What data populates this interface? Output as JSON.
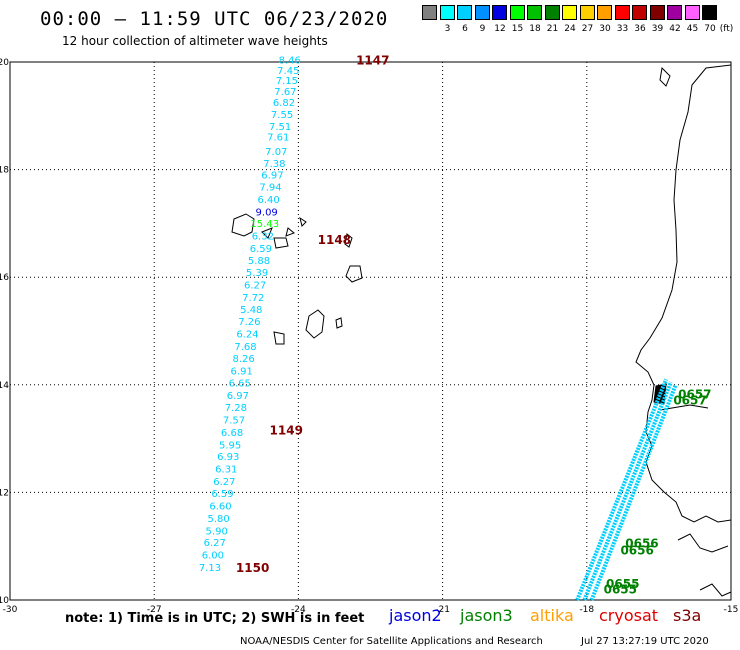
{
  "header": {
    "title": "00:00 – 11:59 UTC 06/23/2020",
    "subtitle": "12 hour collection of altimeter wave heights"
  },
  "color_scale": {
    "unit": "(ft)",
    "items": [
      {
        "label": "",
        "color": "#808080"
      },
      {
        "label": "3",
        "color": "#00ffff"
      },
      {
        "label": "6",
        "color": "#00d0ff"
      },
      {
        "label": "9",
        "color": "#0090ff"
      },
      {
        "label": "12",
        "color": "#0000e0"
      },
      {
        "label": "15",
        "color": "#00ff00"
      },
      {
        "label": "18",
        "color": "#00c000"
      },
      {
        "label": "21",
        "color": "#008000"
      },
      {
        "label": "24",
        "color": "#ffff00"
      },
      {
        "label": "27",
        "color": "#ffd000"
      },
      {
        "label": "30",
        "color": "#ffa000"
      },
      {
        "label": "33",
        "color": "#ff0000"
      },
      {
        "label": "36",
        "color": "#c00000"
      },
      {
        "label": "39",
        "color": "#800000"
      },
      {
        "label": "42",
        "color": "#a000a0"
      },
      {
        "label": "45",
        "color": "#ff60ff"
      },
      {
        "label": "70",
        "color": "#000000"
      }
    ]
  },
  "map": {
    "lon_ticks": [
      "-30",
      "-27",
      "-24",
      "-21",
      "-18",
      "-15"
    ],
    "lat_ticks": [
      "10",
      "12",
      "14",
      "16",
      "18",
      "20"
    ],
    "track_main": {
      "color": "#00d0ff",
      "readings": [
        {
          "lon": -24.18,
          "lat": 19.97,
          "text": "8.46",
          "color": "#00d0ff"
        },
        {
          "lon": -24.21,
          "lat": 19.78,
          "text": "7.45",
          "color": "#00d0ff"
        },
        {
          "lon": -24.24,
          "lat": 19.59,
          "text": "7.15",
          "color": "#00d0ff"
        },
        {
          "lon": -24.27,
          "lat": 19.39,
          "text": "7.67",
          "color": "#00d0ff"
        },
        {
          "lon": -24.3,
          "lat": 19.18,
          "text": "6.82",
          "color": "#00d0ff"
        },
        {
          "lon": -24.34,
          "lat": 18.96,
          "text": "7.55",
          "color": "#00d0ff"
        },
        {
          "lon": -24.38,
          "lat": 18.74,
          "text": "7.51",
          "color": "#00d0ff"
        },
        {
          "lon": -24.42,
          "lat": 18.54,
          "text": "7.61",
          "color": "#00d0ff"
        },
        {
          "lon": -24.46,
          "lat": 18.27,
          "text": "7.07",
          "color": "#00d0ff"
        },
        {
          "lon": -24.5,
          "lat": 18.05,
          "text": "7.38",
          "color": "#00d0ff"
        },
        {
          "lon": -24.54,
          "lat": 17.83,
          "text": "6.97",
          "color": "#00d0ff"
        },
        {
          "lon": -24.58,
          "lat": 17.61,
          "text": "7.94",
          "color": "#00d0ff"
        },
        {
          "lon": -24.62,
          "lat": 17.38,
          "text": "6.40",
          "color": "#00d0ff"
        },
        {
          "lon": -24.66,
          "lat": 17.15,
          "text": "9.09",
          "color": "#0000e0"
        },
        {
          "lon": -24.7,
          "lat": 16.93,
          "text": "15.43",
          "color": "#00ff00"
        },
        {
          "lon": -24.74,
          "lat": 16.7,
          "text": "6.32",
          "color": "#00d0ff"
        },
        {
          "lon": -24.78,
          "lat": 16.47,
          "text": "6.59",
          "color": "#00d0ff"
        },
        {
          "lon": -24.82,
          "lat": 16.25,
          "text": "5.88",
          "color": "#00d0ff"
        },
        {
          "lon": -24.86,
          "lat": 16.02,
          "text": "5.39",
          "color": "#00d0ff"
        },
        {
          "lon": -24.9,
          "lat": 15.79,
          "text": "6.27",
          "color": "#00d0ff"
        },
        {
          "lon": -24.94,
          "lat": 15.56,
          "text": "7.72",
          "color": "#00d0ff"
        },
        {
          "lon": -24.98,
          "lat": 15.33,
          "text": "5.48",
          "color": "#00d0ff"
        },
        {
          "lon": -25.02,
          "lat": 15.11,
          "text": "7.26",
          "color": "#00d0ff"
        },
        {
          "lon": -25.06,
          "lat": 14.88,
          "text": "6.24",
          "color": "#00d0ff"
        },
        {
          "lon": -25.1,
          "lat": 14.65,
          "text": "7.68",
          "color": "#00d0ff"
        },
        {
          "lon": -25.14,
          "lat": 14.42,
          "text": "8.26",
          "color": "#00d0ff"
        },
        {
          "lon": -25.18,
          "lat": 14.19,
          "text": "6.91",
          "color": "#00d0ff"
        },
        {
          "lon": -25.22,
          "lat": 13.97,
          "text": "6.65",
          "color": "#00d0ff"
        },
        {
          "lon": -25.26,
          "lat": 13.74,
          "text": "6.97",
          "color": "#00d0ff"
        },
        {
          "lon": -25.3,
          "lat": 13.51,
          "text": "7.28",
          "color": "#00d0ff"
        },
        {
          "lon": -25.34,
          "lat": 13.28,
          "text": "7.57",
          "color": "#00d0ff"
        },
        {
          "lon": -25.38,
          "lat": 13.05,
          "text": "6.68",
          "color": "#00d0ff"
        },
        {
          "lon": -25.42,
          "lat": 12.82,
          "text": "5.95",
          "color": "#00d0ff"
        },
        {
          "lon": -25.46,
          "lat": 12.6,
          "text": "6.93",
          "color": "#00d0ff"
        },
        {
          "lon": -25.5,
          "lat": 12.37,
          "text": "6.31",
          "color": "#00d0ff"
        },
        {
          "lon": -25.54,
          "lat": 12.14,
          "text": "6.27",
          "color": "#00d0ff"
        },
        {
          "lon": -25.58,
          "lat": 11.91,
          "text": "6.59",
          "color": "#00d0ff"
        },
        {
          "lon": -25.62,
          "lat": 11.68,
          "text": "6.60",
          "color": "#00d0ff"
        },
        {
          "lon": -25.66,
          "lat": 11.45,
          "text": "5.80",
          "color": "#00d0ff"
        },
        {
          "lon": -25.7,
          "lat": 11.22,
          "text": "5.90",
          "color": "#00d0ff"
        },
        {
          "lon": -25.74,
          "lat": 11.0,
          "text": "6.27",
          "color": "#00d0ff"
        },
        {
          "lon": -25.78,
          "lat": 10.77,
          "text": "6.00",
          "color": "#00d0ff"
        },
        {
          "lon": -25.84,
          "lat": 10.54,
          "text": "7.13",
          "color": "#00d0ff"
        }
      ]
    },
    "time_labels": [
      {
        "text": "1147",
        "lon": -22.8,
        "lat": 19.95,
        "color": "#800000"
      },
      {
        "text": "1148",
        "lon": -23.6,
        "lat": 16.62,
        "color": "#800000"
      },
      {
        "text": "1149",
        "lon": -24.6,
        "lat": 13.08,
        "color": "#800000"
      },
      {
        "text": "1150",
        "lon": -25.3,
        "lat": 10.52,
        "color": "#800000"
      },
      {
        "text": "0657",
        "lon": -16.1,
        "lat": 13.75,
        "color": "#008000"
      },
      {
        "text": "0657",
        "lon": -16.2,
        "lat": 13.63,
        "color": "#008000"
      },
      {
        "text": "0656",
        "lon": -17.2,
        "lat": 10.98,
        "color": "#008000"
      },
      {
        "text": "0656",
        "lon": -17.3,
        "lat": 10.85,
        "color": "#008000"
      },
      {
        "text": "0655",
        "lon": -17.6,
        "lat": 10.22,
        "color": "#008000"
      },
      {
        "text": "0655",
        "lon": -17.65,
        "lat": 10.12,
        "color": "#008000"
      }
    ],
    "coast_tracks": [
      {
        "from": {
          "lon": -18.2,
          "lat": 10.0
        },
        "to": {
          "lon": -16.35,
          "lat": 14.1
        },
        "color": "#00d0ff"
      },
      {
        "from": {
          "lon": -18.05,
          "lat": 10.0
        },
        "to": {
          "lon": -16.25,
          "lat": 14.05
        },
        "color": "#00d0ff"
      },
      {
        "from": {
          "lon": -17.9,
          "lat": 10.0
        },
        "to": {
          "lon": -16.15,
          "lat": 14.0
        },
        "color": "#00d0ff"
      }
    ]
  },
  "footer": {
    "note": "note: 1) Time is in UTC; 2) SWH is in feet",
    "satellites": [
      {
        "name": "jason2",
        "color": "#0000e0"
      },
      {
        "name": "jason3",
        "color": "#008000"
      },
      {
        "name": "altika",
        "color": "#ffa000"
      },
      {
        "name": "cryosat",
        "color": "#e00000"
      },
      {
        "name": "s3a",
        "color": "#800000"
      }
    ],
    "credit": "NOAA/NESDIS Center for Satellite Applications and Research",
    "generated": "Jul 27 13:27:19 UTC 2020"
  }
}
